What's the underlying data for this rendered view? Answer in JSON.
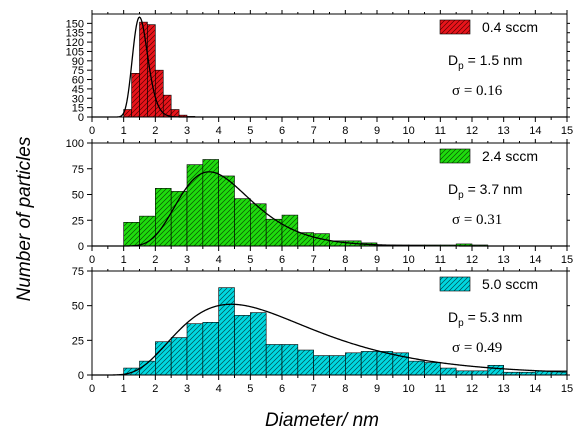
{
  "figure": {
    "xlabel": "Diameter/ nm",
    "ylabel": "Number of particles"
  },
  "chart_data": [
    {
      "type": "bar",
      "legend": "0.4 sccm",
      "dp_label": "D",
      "dp_sub": "p",
      "dp_value": " = 1.5 nm",
      "sigma_label": "σ = 0.16",
      "color": "#e8141b",
      "hatch": "#5a0000",
      "bin_width": 0.25,
      "bin_starts": [
        1.0,
        1.25,
        1.5,
        1.75,
        2.0,
        2.25,
        2.5,
        2.75,
        3.0
      ],
      "values": [
        12,
        70,
        152,
        148,
        75,
        35,
        12,
        3,
        1
      ],
      "fit": {
        "center": 1.5,
        "sigma": 0.16,
        "peak": 160
      },
      "xlim": [
        0,
        15
      ],
      "ylim": [
        0,
        165
      ],
      "yticks": [
        0,
        15,
        30,
        45,
        60,
        75,
        90,
        105,
        120,
        135,
        150
      ],
      "xticks": [
        0,
        1,
        2,
        3,
        4,
        5,
        6,
        7,
        8,
        9,
        10,
        11,
        12,
        13,
        14,
        15
      ]
    },
    {
      "type": "bar",
      "legend": "2.4 sccm",
      "dp_label": "D",
      "dp_sub": "p",
      "dp_value": " = 3.7 nm",
      "sigma_label": "σ = 0.31",
      "color": "#1fdc0e",
      "hatch": "#075200",
      "bin_width": 0.5,
      "bin_starts": [
        1.0,
        1.5,
        2.0,
        2.5,
        3.0,
        3.5,
        4.0,
        4.5,
        5.0,
        5.5,
        6.0,
        6.5,
        7.0,
        7.5,
        8.0,
        8.5,
        9.0,
        9.5,
        10.0,
        10.5,
        11.0,
        11.5,
        12.0
      ],
      "values": [
        23,
        29,
        56,
        53,
        79,
        84,
        68,
        46,
        41,
        26,
        30,
        13,
        12,
        5,
        5,
        3,
        1,
        1,
        1,
        1,
        1,
        2,
        1
      ],
      "fit": {
        "center": 3.7,
        "sigma": 0.31,
        "peak": 72
      },
      "xlim": [
        0,
        15
      ],
      "ylim": [
        0,
        100
      ],
      "yticks": [
        0,
        25,
        50,
        75,
        100
      ],
      "xticks": [
        0,
        1,
        2,
        3,
        4,
        5,
        6,
        7,
        8,
        9,
        10,
        11,
        12,
        13,
        14,
        15
      ]
    },
    {
      "type": "bar",
      "legend": "5.0 sccm",
      "dp_label": "D",
      "dp_sub": "p",
      "dp_value": " = 5.3 nm",
      "sigma_label": "σ = 0.49",
      "color": "#00d8e0",
      "hatch": "#004a4e",
      "bin_width": 0.5,
      "bin_starts": [
        1.0,
        1.5,
        2.0,
        2.5,
        3.0,
        3.5,
        4.0,
        4.5,
        5.0,
        5.5,
        6.0,
        6.5,
        7.0,
        7.5,
        8.0,
        8.5,
        9.0,
        9.5,
        10.0,
        10.5,
        11.0,
        11.5,
        12.0,
        12.5,
        13.0,
        13.5,
        14.0,
        14.5
      ],
      "values": [
        5,
        10,
        24,
        27,
        37,
        38,
        63,
        43,
        45,
        22,
        22,
        18,
        14,
        14,
        16,
        17,
        17,
        16,
        10,
        9,
        5,
        3,
        3,
        7,
        2,
        2,
        3,
        3
      ],
      "fit": {
        "center": 4.4,
        "sigma": 0.49,
        "peak": 51
      },
      "xlim": [
        0,
        15
      ],
      "ylim": [
        0,
        75
      ],
      "yticks": [
        0,
        25,
        50,
        75
      ],
      "xticks": [
        0,
        1,
        2,
        3,
        4,
        5,
        6,
        7,
        8,
        9,
        10,
        11,
        12,
        13,
        14,
        15
      ]
    }
  ]
}
